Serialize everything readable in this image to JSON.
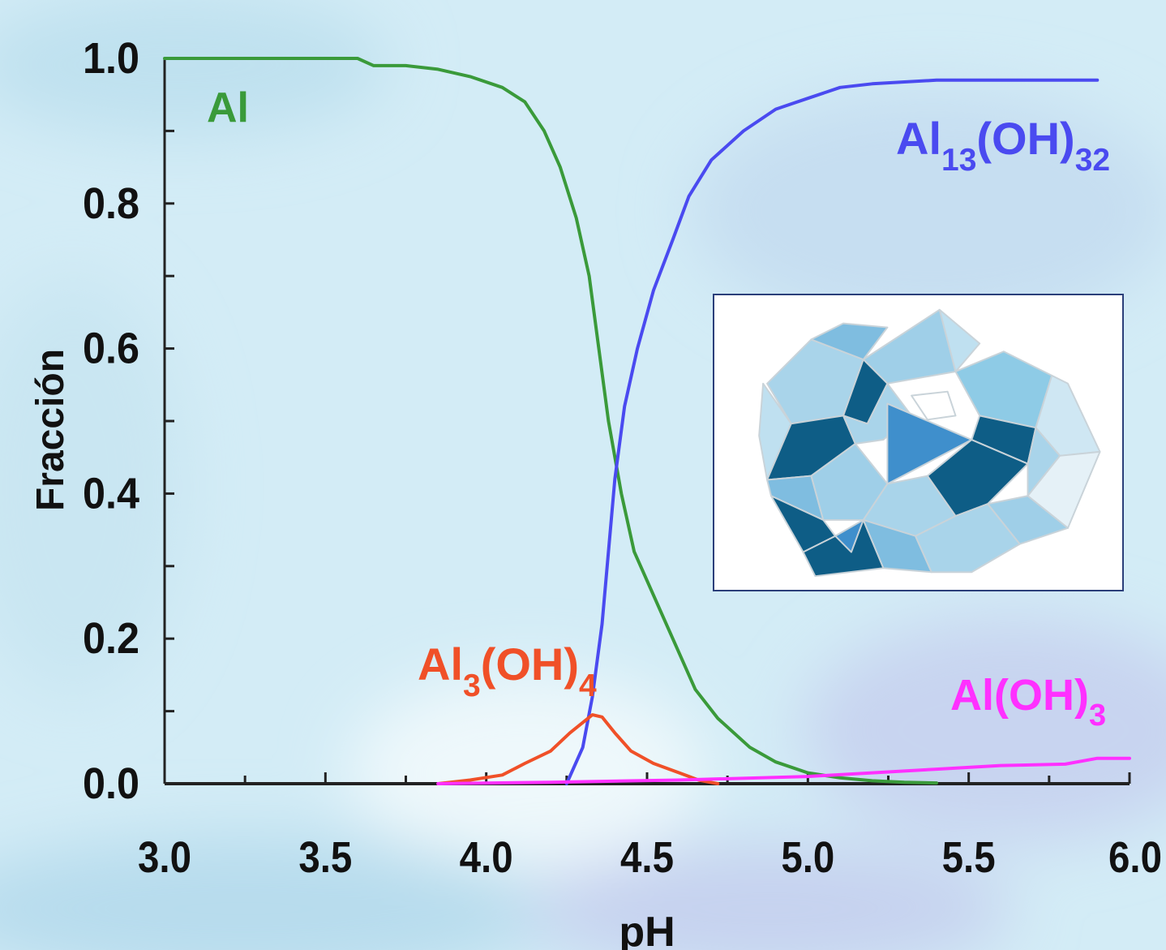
{
  "chart_data": {
    "type": "line",
    "title": "",
    "xlabel": "pH",
    "ylabel": "Fracción",
    "xlim": [
      3.0,
      6.0
    ],
    "ylim": [
      0.0,
      1.0
    ],
    "xticks": [
      "3.0",
      "3.5",
      "4.0",
      "4.5",
      "5.0",
      "5.5",
      "6.0"
    ],
    "yticks": [
      "0.0",
      "0.2",
      "0.4",
      "0.6",
      "0.8",
      "1.0"
    ],
    "grid": false,
    "series": [
      {
        "name": "Al",
        "label_main": "Al",
        "label_sub": "",
        "label_tail": "",
        "label_sub2": "",
        "color": "#3a9a3a",
        "points": [
          [
            3.0,
            1.0
          ],
          [
            3.3,
            1.0
          ],
          [
            3.6,
            1.0
          ],
          [
            3.65,
            0.99
          ],
          [
            3.75,
            0.99
          ],
          [
            3.85,
            0.985
          ],
          [
            3.95,
            0.975
          ],
          [
            4.05,
            0.96
          ],
          [
            4.12,
            0.94
          ],
          [
            4.18,
            0.9
          ],
          [
            4.23,
            0.85
          ],
          [
            4.28,
            0.78
          ],
          [
            4.32,
            0.7
          ],
          [
            4.35,
            0.6
          ],
          [
            4.38,
            0.5
          ],
          [
            4.42,
            0.4
          ],
          [
            4.46,
            0.32
          ],
          [
            4.52,
            0.26
          ],
          [
            4.58,
            0.2
          ],
          [
            4.65,
            0.13
          ],
          [
            4.72,
            0.09
          ],
          [
            4.82,
            0.05
          ],
          [
            4.9,
            0.03
          ],
          [
            5.0,
            0.015
          ],
          [
            5.1,
            0.008
          ],
          [
            5.2,
            0.004
          ],
          [
            5.3,
            0.002
          ],
          [
            5.4,
            0.001
          ]
        ]
      },
      {
        "name": "Al13(OH)32",
        "label_main": "Al",
        "label_sub": "13",
        "label_tail": "(OH)",
        "label_sub2": "32",
        "color": "#4a4af0",
        "points": [
          [
            4.25,
            0.0
          ],
          [
            4.3,
            0.05
          ],
          [
            4.33,
            0.12
          ],
          [
            4.36,
            0.22
          ],
          [
            4.38,
            0.32
          ],
          [
            4.4,
            0.42
          ],
          [
            4.43,
            0.52
          ],
          [
            4.47,
            0.6
          ],
          [
            4.52,
            0.68
          ],
          [
            4.58,
            0.75
          ],
          [
            4.63,
            0.81
          ],
          [
            4.7,
            0.86
          ],
          [
            4.8,
            0.9
          ],
          [
            4.9,
            0.93
          ],
          [
            5.0,
            0.945
          ],
          [
            5.1,
            0.96
          ],
          [
            5.2,
            0.965
          ],
          [
            5.4,
            0.97
          ],
          [
            5.6,
            0.97
          ],
          [
            5.9,
            0.97
          ]
        ]
      },
      {
        "name": "Al3(OH)4",
        "label_main": "Al",
        "label_sub": "3",
        "label_tail": "(OH)",
        "label_sub2": "4",
        "color": "#f05028",
        "points": [
          [
            3.85,
            0.0
          ],
          [
            3.95,
            0.005
          ],
          [
            4.05,
            0.012
          ],
          [
            4.12,
            0.028
          ],
          [
            4.2,
            0.045
          ],
          [
            4.26,
            0.07
          ],
          [
            4.33,
            0.095
          ],
          [
            4.36,
            0.092
          ],
          [
            4.4,
            0.07
          ],
          [
            4.45,
            0.045
          ],
          [
            4.52,
            0.028
          ],
          [
            4.6,
            0.015
          ],
          [
            4.66,
            0.005
          ],
          [
            4.72,
            0.0
          ]
        ]
      },
      {
        "name": "Al(OH)3",
        "label_main": "Al(OH)",
        "label_sub": "3",
        "label_tail": "",
        "label_sub2": "",
        "color": "#ff30ff",
        "points": [
          [
            3.85,
            0.0
          ],
          [
            4.2,
            0.002
          ],
          [
            4.6,
            0.005
          ],
          [
            5.0,
            0.01
          ],
          [
            5.2,
            0.015
          ],
          [
            5.4,
            0.02
          ],
          [
            5.6,
            0.025
          ],
          [
            5.8,
            0.027
          ],
          [
            5.9,
            0.035
          ],
          [
            6.0,
            0.035
          ]
        ]
      }
    ]
  }
}
